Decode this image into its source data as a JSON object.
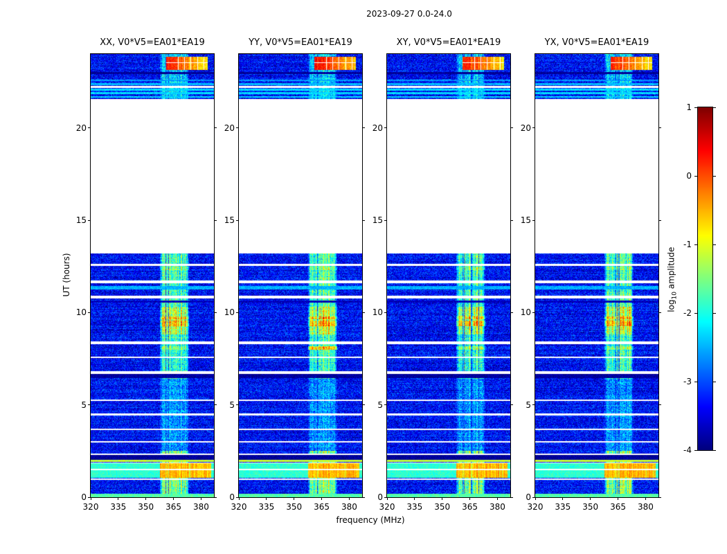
{
  "chart_data": {
    "type": "heatmap",
    "title": "2023-09-27 0.0-24.0",
    "xlabel": "frequency (MHz)",
    "ylabel": "UT (hours)",
    "xlim": [
      320,
      387
    ],
    "ylim": [
      0,
      24
    ],
    "xticks": [
      320,
      335,
      350,
      365,
      380
    ],
    "yticks": [
      0,
      5,
      10,
      15,
      20
    ],
    "panels": [
      {
        "title": "XX, V0*V5=EA01*EA19",
        "seed": 101,
        "blob_level": 0.1,
        "stripe8_boost": 0.35
      },
      {
        "title": "YY, V0*V5=EA01*EA19",
        "seed": 202,
        "blob_level": 0.25,
        "stripe8_boost": 1.0
      },
      {
        "title": "XY, V0*V5=EA01*EA19",
        "seed": 303,
        "blob_level": 0.15,
        "stripe8_boost": 0.4
      },
      {
        "title": "YX, V0*V5=EA01*EA19",
        "seed": 404,
        "blob_level": 0.1,
        "stripe8_boost": 0.35
      }
    ],
    "colorbar": {
      "label": "log10 amplitude",
      "label_parts": {
        "pre": "log",
        "sub": "10",
        "post": " amplitude"
      },
      "min": -4,
      "max": 1,
      "ticks": [
        1,
        0,
        -1,
        -2,
        -3,
        -4
      ],
      "colormap": "jet"
    },
    "background": {
      "base": -3.35,
      "spread": 0.55
    },
    "data_intervals": [
      [
        0,
        13.2
      ],
      [
        21.55,
        24
      ]
    ],
    "gaps": [
      [
        0.95,
        1.03
      ],
      [
        1.45,
        1.53
      ],
      [
        1.82,
        1.89
      ],
      [
        2.27,
        2.35
      ],
      [
        2.95,
        3.03
      ],
      [
        3.62,
        3.7
      ],
      [
        4.42,
        4.52
      ],
      [
        5.22,
        5.3
      ],
      [
        6.67,
        6.82
      ],
      [
        7.52,
        7.62
      ],
      [
        8.27,
        8.42
      ],
      [
        10.78,
        10.92
      ],
      [
        11.58,
        11.72
      ],
      [
        12.52,
        12.62
      ],
      [
        22.18,
        22.28
      ]
    ],
    "rfi_band": {
      "f0": 357.5,
      "f1": 373.5,
      "profile": [
        [
          0,
          1.0
        ],
        [
          2.5,
          0.4
        ],
        [
          6.4,
          0.8
        ],
        [
          8.8,
          1.15
        ],
        [
          10.3,
          0.85
        ],
        [
          21.55,
          0.55
        ]
      ]
    },
    "stripes": [
      {
        "t0": 0.0,
        "t1": 0.18,
        "level": -1.7
      },
      {
        "t0": 1.05,
        "t1": 1.45,
        "level": -1.9,
        "band_level": -0.55,
        "bf1": 385.5
      },
      {
        "t0": 1.55,
        "t1": 1.82,
        "level": -1.9,
        "band_level": -0.55,
        "bf1": 385.5
      },
      {
        "t0": 1.9,
        "t1": 2.02,
        "level": -1.15
      },
      {
        "t0": 2.02,
        "t1": 2.27,
        "level": -3.9
      },
      {
        "t0": 6.45,
        "t1": 6.67,
        "level": -3.85
      },
      {
        "t0": 10.55,
        "t1": 10.65,
        "level": -3.7
      },
      {
        "t0": 11.25,
        "t1": 11.45,
        "level": -2.5
      },
      {
        "t0": 21.62,
        "t1": 21.72,
        "level": -2.3
      },
      {
        "t0": 21.82,
        "t1": 21.92,
        "level": -2.3
      },
      {
        "t0": 22.02,
        "t1": 22.12,
        "level": -2.3
      },
      {
        "t0": 22.32,
        "t1": 22.42,
        "level": -2.45
      },
      {
        "t0": 22.52,
        "t1": 22.6,
        "level": -2.6
      },
      {
        "t0": 22.93,
        "t1": 23.02,
        "level": -3.9
      }
    ],
    "band_segments": [
      {
        "t0": 7.98,
        "t1": 8.18,
        "boost": "stripe8"
      },
      {
        "t0": 9.28,
        "t1": 9.55,
        "boost": 0.55
      },
      {
        "t0": 9.62,
        "t1": 9.8,
        "boost": 0.45
      },
      {
        "t0": 12.3,
        "t1": 12.48,
        "boost": 0.25
      }
    ],
    "blob": {
      "t0": 23.15,
      "t1": 23.85,
      "f0": 361,
      "f1": 383.5,
      "grad": 1.1,
      "gap": [
        23.5,
        23.56
      ],
      "white_cols": [
        367.5,
        371,
        374.5,
        378,
        381.5
      ]
    }
  }
}
